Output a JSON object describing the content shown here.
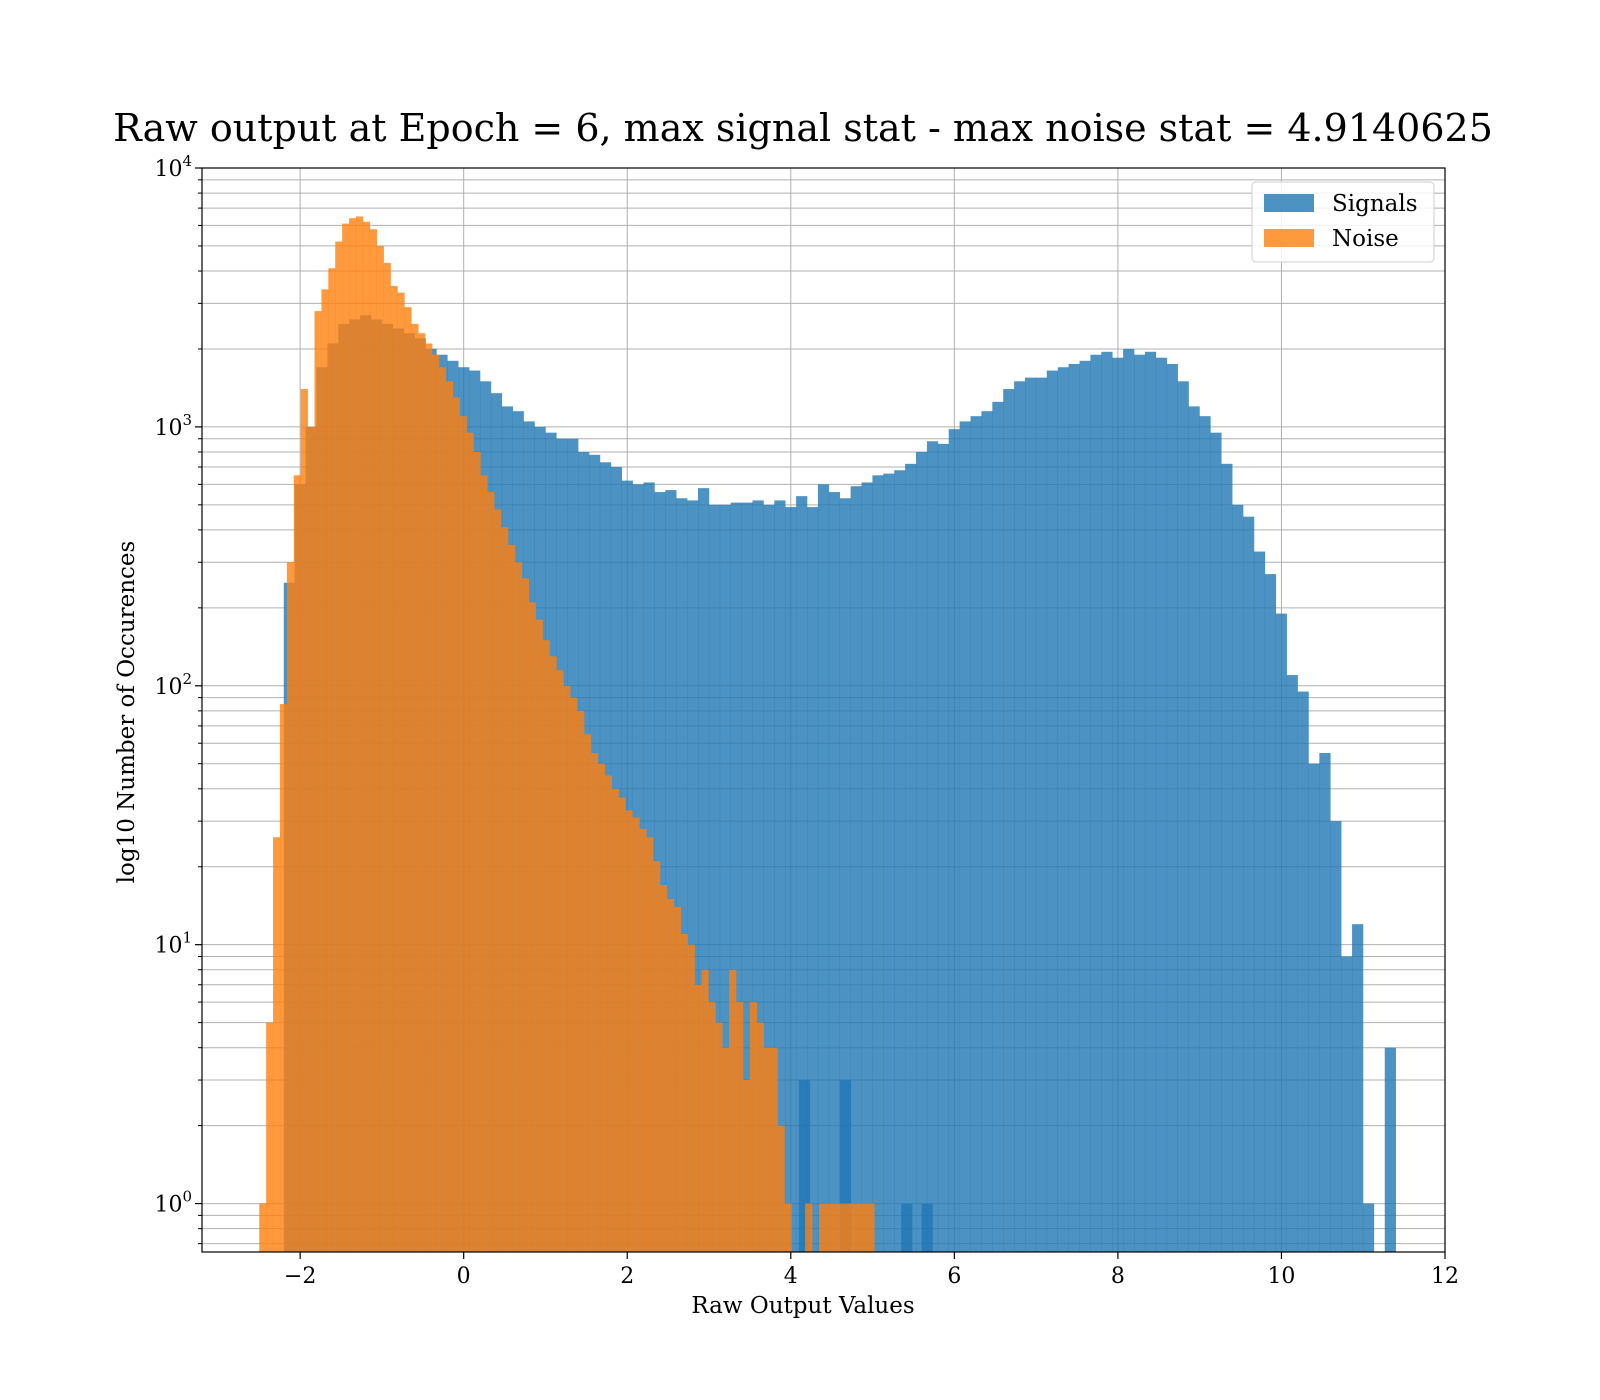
{
  "chart_data": {
    "type": "histogram",
    "title": "Raw output at Epoch = 6, max signal stat - max noise stat = 4.9140625",
    "xlabel": "Raw Output Values",
    "ylabel": "log10 Number of Occurences",
    "y_scale": "log",
    "xlim": [
      -3.2,
      12
    ],
    "ylim": [
      0.65,
      10000
    ],
    "x_ticks": [
      {
        "value": -2,
        "label": "−2"
      },
      {
        "value": 0,
        "label": "0"
      },
      {
        "value": 2,
        "label": "2"
      },
      {
        "value": 4,
        "label": "4"
      },
      {
        "value": 6,
        "label": "6"
      },
      {
        "value": 8,
        "label": "8"
      },
      {
        "value": 10,
        "label": "10"
      },
      {
        "value": 12,
        "label": "12"
      }
    ],
    "y_ticks": [
      {
        "value": 1,
        "base": "10",
        "exp": "0"
      },
      {
        "value": 10,
        "base": "10",
        "exp": "1"
      },
      {
        "value": 100,
        "base": "10",
        "exp": "2"
      },
      {
        "value": 1000,
        "base": "10",
        "exp": "3"
      },
      {
        "value": 10000,
        "base": "10",
        "exp": "4"
      }
    ],
    "grid": true,
    "legend": {
      "position": "top-right"
    },
    "series": [
      {
        "name": "Signals",
        "color": "#1f77b4",
        "bin_start": -2.2,
        "bin_width": 0.1333,
        "counts": [
          250,
          600,
          1000,
          1700,
          2100,
          2500,
          2600,
          2700,
          2600,
          2500,
          2400,
          2300,
          2200,
          2000,
          1900,
          1800,
          1700,
          1650,
          1500,
          1350,
          1200,
          1150,
          1050,
          1000,
          950,
          900,
          900,
          800,
          780,
          730,
          700,
          620,
          600,
          610,
          560,
          570,
          530,
          520,
          580,
          500,
          500,
          510,
          510,
          520,
          500,
          520,
          490,
          540,
          490,
          600,
          560,
          530,
          590,
          610,
          650,
          660,
          680,
          720,
          800,
          880,
          860,
          980,
          1050,
          1100,
          1150,
          1250,
          1400,
          1500,
          1550,
          1550,
          1650,
          1700,
          1750,
          1800,
          1900,
          1950,
          1850,
          2000,
          1900,
          1950,
          1850,
          1750,
          1500,
          1200,
          1100,
          950,
          720,
          500,
          450,
          330,
          270,
          190,
          110,
          95,
          50,
          55,
          30,
          9,
          12,
          1,
          0,
          4
        ],
        "extra_bins": [
          {
            "x": 4.1,
            "count": 3
          },
          {
            "x": 4.6,
            "count": 3
          },
          {
            "x": 5.35,
            "count": 1
          },
          {
            "x": 5.6,
            "count": 1
          }
        ]
      },
      {
        "name": "Noise",
        "color": "#ff7f0e",
        "bin_start": -2.5,
        "bin_width": 0.0845,
        "counts": [
          1,
          5,
          26,
          85,
          300,
          650,
          1400,
          1000,
          2800,
          3400,
          4100,
          5200,
          6100,
          6400,
          6500,
          6200,
          5800,
          5000,
          4300,
          3500,
          3300,
          2900,
          2500,
          2300,
          2100,
          1900,
          1700,
          1500,
          1300,
          1100,
          950,
          800,
          650,
          560,
          480,
          410,
          350,
          300,
          260,
          210,
          180,
          150,
          130,
          115,
          100,
          90,
          80,
          65,
          55,
          50,
          45,
          40,
          37,
          33,
          31,
          28,
          26,
          21,
          17,
          15,
          14,
          11,
          10,
          7,
          8,
          6,
          5,
          4,
          8,
          6,
          3,
          6,
          5,
          4,
          4,
          2,
          1,
          0,
          0,
          1,
          0,
          1,
          1,
          1,
          1,
          1,
          1,
          1,
          1
        ],
        "extra_bins": []
      }
    ]
  }
}
